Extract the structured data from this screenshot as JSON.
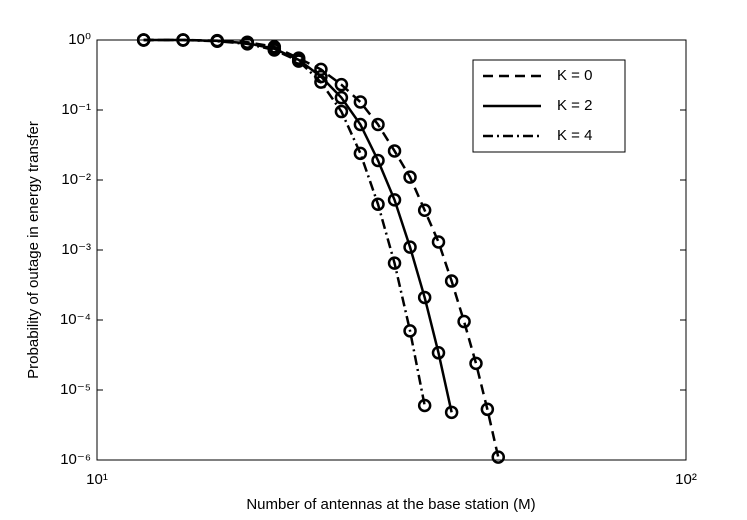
{
  "chart_data": {
    "type": "line",
    "xlabel": "Number of antennas at the base station (M)",
    "ylabel": "Probability of outage in energy transfer",
    "xscale": "log",
    "yscale": "log",
    "xlim": [
      10,
      100
    ],
    "xticks": [
      {
        "value": 10,
        "label": "10¹"
      },
      {
        "value": 100,
        "label": "10²"
      }
    ],
    "ylim": [
      1e-06,
      1
    ],
    "yticks": [
      {
        "value": 1e-06,
        "label": "10⁻⁶"
      },
      {
        "value": 1e-05,
        "label": "10⁻⁵"
      },
      {
        "value": 0.0001,
        "label": "10⁻⁴"
      },
      {
        "value": 0.001,
        "label": "10⁻³"
      },
      {
        "value": 0.01,
        "label": "10⁻²"
      },
      {
        "value": 0.1,
        "label": "10⁻¹"
      },
      {
        "value": 1,
        "label": "10⁰"
      }
    ],
    "legend": "upper right",
    "marker": "o",
    "series": [
      {
        "name": "K = 0",
        "color": "#000000",
        "dash": "dashed",
        "x": [
          12,
          14,
          16,
          18,
          20,
          22,
          24,
          26,
          28,
          30,
          32,
          34,
          36,
          38,
          40,
          42,
          44,
          46,
          48
        ],
        "values": [
          1,
          1,
          0.98,
          0.93,
          0.8,
          0.55,
          0.38,
          0.23,
          0.13,
          0.062,
          0.026,
          0.011,
          0.0037,
          0.0013,
          0.00036,
          9.5e-05,
          2.4e-05,
          5.3e-06,
          1.1e-06
        ]
      },
      {
        "name": "K = 2",
        "color": "#000000",
        "dash": "solid",
        "x": [
          12,
          14,
          16,
          18,
          20,
          22,
          24,
          26,
          28,
          30,
          32,
          34,
          36,
          38,
          40
        ],
        "values": [
          1,
          1,
          0.97,
          0.9,
          0.75,
          0.52,
          0.3,
          0.15,
          0.062,
          0.019,
          0.0052,
          0.0011,
          0.00021,
          3.4e-05,
          4.8e-06
        ]
      },
      {
        "name": "K = 4",
        "color": "#000000",
        "dash": "dashdot",
        "x": [
          12,
          14,
          16,
          18,
          20,
          22,
          24,
          26,
          28,
          30,
          32,
          34,
          36
        ],
        "values": [
          1,
          1,
          0.96,
          0.88,
          0.72,
          0.5,
          0.25,
          0.095,
          0.024,
          0.0045,
          0.00065,
          7e-05,
          6e-06
        ]
      }
    ]
  }
}
